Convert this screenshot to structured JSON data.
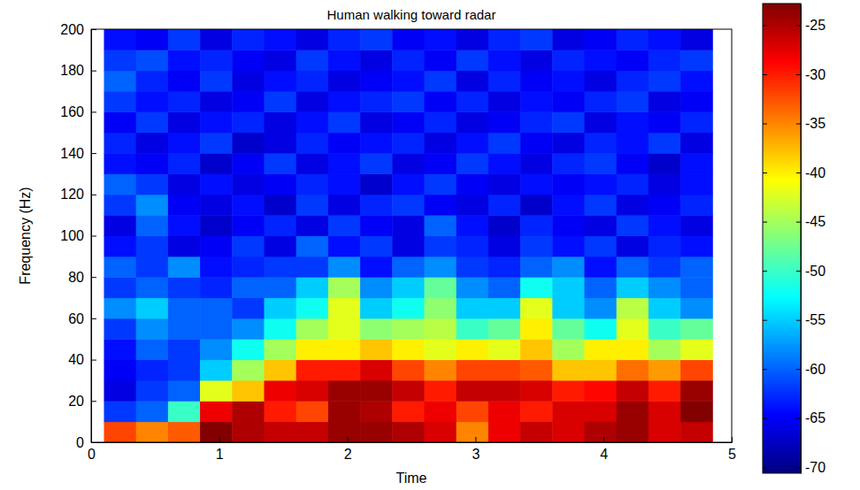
{
  "chart_data": {
    "type": "heatmap",
    "title": "Human walking toward radar",
    "x_label": "Time",
    "y_label": "Frequency (Hz)",
    "xlim": [
      0,
      5
    ],
    "xticks": [
      0,
      1,
      2,
      3,
      4,
      5
    ],
    "ylim": [
      0,
      200
    ],
    "yticks": [
      0,
      20,
      40,
      60,
      80,
      100,
      120,
      140,
      160,
      180,
      200
    ],
    "x_bins": [
      0.1,
      0.35,
      0.6,
      0.85,
      1.1,
      1.35,
      1.6,
      1.85,
      2.1,
      2.35,
      2.6,
      2.85,
      3.1,
      3.35,
      3.6,
      3.85,
      4.1,
      4.35,
      4.6,
      4.85
    ],
    "y_bins": [
      0,
      10,
      20,
      30,
      40,
      50,
      60,
      70,
      80,
      90,
      100,
      110,
      120,
      130,
      140,
      150,
      160,
      170,
      180,
      190,
      200
    ],
    "cells": [
      [
        -32,
        -35,
        -33,
        -23,
        -25,
        -26,
        -26,
        -24,
        -24,
        -25,
        -27,
        -35,
        -28,
        -26,
        -27,
        -25,
        -24,
        -27,
        -26
      ],
      [
        -62,
        -60,
        -50,
        -28,
        -25,
        -30,
        -32,
        -24,
        -25,
        -30,
        -28,
        -32,
        -28,
        -30,
        -27,
        -27,
        -24,
        -27,
        -23
      ],
      [
        -66,
        -62,
        -60,
        -42,
        -38,
        -28,
        -27,
        -24,
        -24,
        -26,
        -30,
        -26,
        -26,
        -27,
        -30,
        -29,
        -26,
        -30,
        -24
      ],
      [
        -65,
        -63,
        -62,
        -55,
        -45,
        -38,
        -30,
        -30,
        -27,
        -32,
        -35,
        -32,
        -32,
        -33,
        -38,
        -38,
        -34,
        -36,
        -32
      ],
      [
        -64,
        -60,
        -62,
        -58,
        -52,
        -45,
        -40,
        -40,
        -38,
        -40,
        -42,
        -40,
        -42,
        -38,
        -45,
        -40,
        -40,
        -45,
        -42
      ],
      [
        -62,
        -58,
        -60,
        -60,
        -58,
        -52,
        -45,
        -42,
        -46,
        -45,
        -44,
        -50,
        -48,
        -40,
        -48,
        -52,
        -42,
        -50,
        -48
      ],
      [
        -58,
        -55,
        -60,
        -60,
        -62,
        -55,
        -52,
        -42,
        -55,
        -52,
        -46,
        -55,
        -55,
        -42,
        -55,
        -58,
        -44,
        -55,
        -58
      ],
      [
        -62,
        -60,
        -62,
        -63,
        -60,
        -60,
        -55,
        -45,
        -58,
        -55,
        -48,
        -58,
        -60,
        -52,
        -55,
        -60,
        -55,
        -58,
        -60
      ],
      [
        -60,
        -62,
        -58,
        -64,
        -63,
        -62,
        -62,
        -58,
        -64,
        -60,
        -58,
        -62,
        -63,
        -60,
        -58,
        -64,
        -60,
        -62,
        -60
      ],
      [
        -64,
        -62,
        -66,
        -65,
        -62,
        -66,
        -60,
        -64,
        -62,
        -66,
        -62,
        -63,
        -66,
        -62,
        -64,
        -62,
        -66,
        -63,
        -64
      ],
      [
        -66,
        -60,
        -64,
        -67,
        -65,
        -63,
        -66,
        -62,
        -65,
        -66,
        -60,
        -64,
        -67,
        -63,
        -65,
        -66,
        -62,
        -64,
        -66
      ],
      [
        -62,
        -58,
        -65,
        -66,
        -64,
        -67,
        -62,
        -66,
        -63,
        -62,
        -65,
        -66,
        -63,
        -67,
        -64,
        -62,
        -66,
        -65,
        -63
      ],
      [
        -60,
        -62,
        -66,
        -64,
        -66,
        -65,
        -63,
        -64,
        -67,
        -64,
        -62,
        -65,
        -66,
        -64,
        -65,
        -64,
        -63,
        -66,
        -64
      ],
      [
        -64,
        -65,
        -63,
        -67,
        -65,
        -62,
        -66,
        -64,
        -62,
        -66,
        -65,
        -62,
        -64,
        -66,
        -63,
        -62,
        -65,
        -67,
        -64
      ],
      [
        -63,
        -66,
        -64,
        -62,
        -67,
        -66,
        -63,
        -65,
        -64,
        -63,
        -66,
        -64,
        -62,
        -65,
        -66,
        -63,
        -64,
        -62,
        -66
      ],
      [
        -65,
        -62,
        -66,
        -64,
        -63,
        -66,
        -64,
        -62,
        -66,
        -65,
        -63,
        -66,
        -65,
        -63,
        -62,
        -66,
        -64,
        -65,
        -63
      ],
      [
        -62,
        -64,
        -63,
        -66,
        -65,
        -62,
        -66,
        -64,
        -63,
        -62,
        -65,
        -63,
        -66,
        -64,
        -65,
        -63,
        -62,
        -66,
        -65
      ],
      [
        -60,
        -63,
        -65,
        -62,
        -66,
        -64,
        -63,
        -66,
        -65,
        -64,
        -62,
        -66,
        -63,
        -65,
        -64,
        -66,
        -63,
        -62,
        -64
      ],
      [
        -62,
        -61,
        -64,
        -63,
        -65,
        -66,
        -62,
        -64,
        -66,
        -63,
        -65,
        -62,
        -64,
        -66,
        -63,
        -64,
        -65,
        -63,
        -62
      ],
      [
        -64,
        -65,
        -62,
        -66,
        -63,
        -64,
        -66,
        -63,
        -62,
        -65,
        -64,
        -66,
        -63,
        -62,
        -66,
        -65,
        -63,
        -64,
        -66
      ]
    ],
    "colorbar": {
      "range": [
        -70.6,
        -22.8
      ],
      "ticks": [
        -70,
        -65,
        -60,
        -55,
        -50,
        -45,
        -40,
        -35,
        -30,
        -25
      ]
    }
  }
}
